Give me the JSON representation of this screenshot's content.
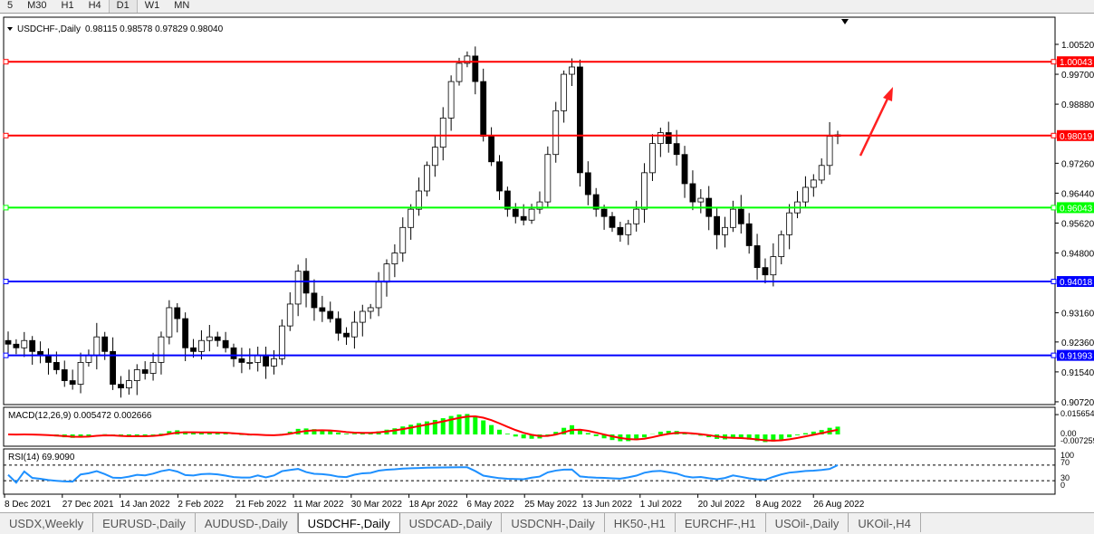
{
  "timeframes": [
    "5",
    "M30",
    "H1",
    "H4",
    "D1",
    "W1",
    "MN"
  ],
  "active_timeframe": "D1",
  "chart_info": {
    "symbol": "USDCHF-,Daily",
    "ohlc": "0.98115 0.98578 0.97829 0.98040"
  },
  "macd_label": "MACD(12,26,9) 0.005472 0.002666",
  "rsi_label": "RSI(14) 69.9090",
  "tabs": [
    "USDX,Weekly",
    "EURUSD-,Daily",
    "AUDUSD-,Daily",
    "USDCHF-,Daily",
    "USDCAD-,Daily",
    "USDCNH-,Daily",
    "HK50-,H1",
    "EURCHF-,H1",
    "USOil-,Daily",
    "UKOil-,H4"
  ],
  "active_tab": "USDCHF-,Daily",
  "chart_data": {
    "type": "candlestick",
    "price_ticks": [
      "1.00520",
      "0.99700",
      "0.98880",
      "0.97260",
      "0.96440",
      "0.95620",
      "0.94800",
      "0.93160",
      "0.92360",
      "0.91540",
      "0.90720"
    ],
    "ylim": [
      0.9072,
      1.0052
    ],
    "date_ticks": [
      "8 Dec 2021",
      "27 Dec 2021",
      "14 Jan 2022",
      "2 Feb 2022",
      "21 Feb 2022",
      "11 Mar 2022",
      "30 Mar 2022",
      "18 Apr 2022",
      "6 May 2022",
      "25 May 2022",
      "13 Jun 2022",
      "1 Jul 2022",
      "20 Jul 2022",
      "8 Aug 2022",
      "26 Aug 2022"
    ],
    "closes": [
      0.923,
      0.922,
      0.924,
      0.921,
      0.92,
      0.918,
      0.916,
      0.913,
      0.912,
      0.918,
      0.92,
      0.925,
      0.921,
      0.912,
      0.911,
      0.913,
      0.916,
      0.915,
      0.918,
      0.925,
      0.933,
      0.93,
      0.922,
      0.921,
      0.924,
      0.925,
      0.924,
      0.922,
      0.919,
      0.918,
      0.918,
      0.92,
      0.917,
      0.919,
      0.928,
      0.934,
      0.943,
      0.937,
      0.933,
      0.932,
      0.93,
      0.926,
      0.925,
      0.929,
      0.932,
      0.933,
      0.94,
      0.945,
      0.948,
      0.955,
      0.96,
      0.965,
      0.972,
      0.977,
      0.985,
      0.995,
      1.0,
      1.002,
      0.995,
      0.98,
      0.973,
      0.965,
      0.96,
      0.958,
      0.957,
      0.96,
      0.962,
      0.975,
      0.987,
      0.997,
      0.999,
      0.97,
      0.964,
      0.96,
      0.958,
      0.955,
      0.953,
      0.956,
      0.96,
      0.97,
      0.978,
      0.981,
      0.978,
      0.975,
      0.967,
      0.962,
      0.963,
      0.958,
      0.953,
      0.955,
      0.96,
      0.956,
      0.95,
      0.944,
      0.942,
      0.947,
      0.953,
      0.959,
      0.962,
      0.966,
      0.968,
      0.972,
      0.98,
      0.9804
    ],
    "levels": [
      {
        "price": 1.00043,
        "label": "1.00043",
        "color": "#ff0000"
      },
      {
        "price": 0.98019,
        "label": "0.98019",
        "color": "#ff0000"
      },
      {
        "price": 0.96043,
        "label": "0.96043",
        "color": "#00ff00"
      },
      {
        "price": 0.94018,
        "label": "0.94018",
        "color": "#0000ff"
      },
      {
        "price": 0.91993,
        "label": "0.91993",
        "color": "#0000ff"
      }
    ],
    "macd_ticks": [
      "0.015654",
      "0.00",
      "-0.007259"
    ],
    "rsi_ticks": [
      "100",
      "70",
      "30",
      "0"
    ],
    "bull_color": "#000000",
    "bear_color": "#000000",
    "macd_hist_color": "#00ff00",
    "macd_signal_color": "#ff0000",
    "rsi_color": "#1e90ff",
    "arrow_color": "#ff2020"
  }
}
